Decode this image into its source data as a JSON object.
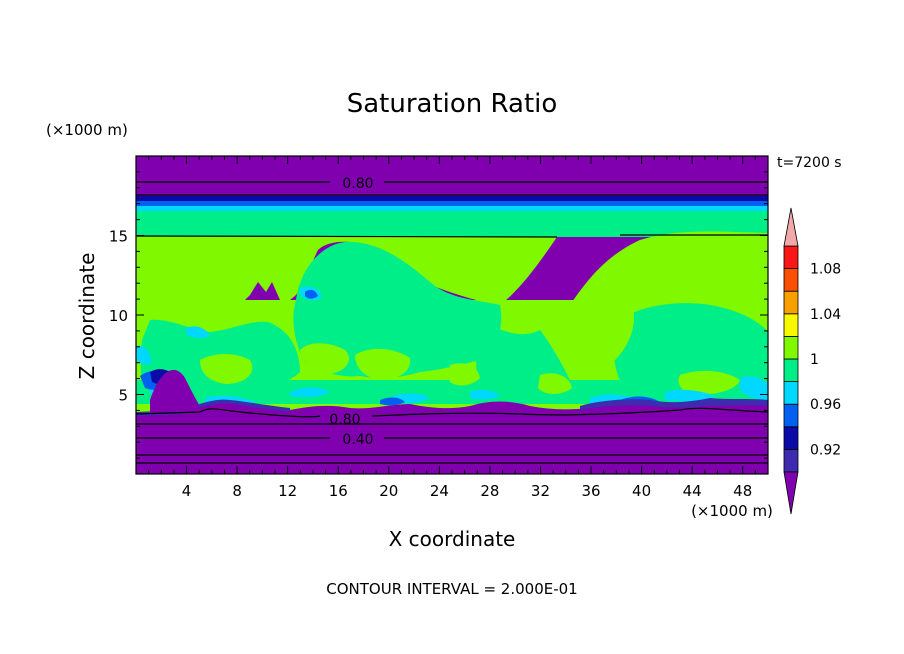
{
  "chart_data": {
    "type": "contour",
    "title": "Saturation Ratio",
    "xlabel": "X coordinate",
    "ylabel": "Z coordinate",
    "x_unit": "(×1000 m)",
    "y_unit": "(×1000 m)",
    "time_label": "t=7200 s",
    "footer": "CONTOUR INTERVAL = 2.000E-01",
    "xlim": [
      0,
      50
    ],
    "ylim": [
      0,
      20
    ],
    "x_ticks": [
      4,
      8,
      12,
      16,
      20,
      24,
      28,
      32,
      36,
      40,
      44,
      48
    ],
    "y_ticks": [
      5,
      10,
      15
    ],
    "colorbar": {
      "levels": [
        0.92,
        0.96,
        1,
        1.04,
        1.08
      ],
      "level_labels": [
        "0.92",
        "0.96",
        "1",
        "1.04",
        "1.08"
      ],
      "colors": [
        "#8000b0",
        "#3e2bb0",
        "#0a0aa8",
        "#0060f0",
        "#00d8ff",
        "#00ee88",
        "#80f800",
        "#f8f800",
        "#f8a000",
        "#f85000",
        "#f81818",
        "#f0a8a8"
      ]
    },
    "contour_labels": [
      "0.80",
      "0.80",
      "0.40"
    ],
    "layers": [
      {
        "name": "lower-dry-layer",
        "range": [
          0,
          3.6
        ],
        "fill": "#8000b0"
      },
      {
        "name": "saturated-moist-layer",
        "range": [
          3.6,
          16.1
        ],
        "fill": "#80f800"
      },
      {
        "name": "upper-dry-layer",
        "range": [
          17.6,
          20
        ],
        "fill": "#8000b0"
      }
    ]
  }
}
